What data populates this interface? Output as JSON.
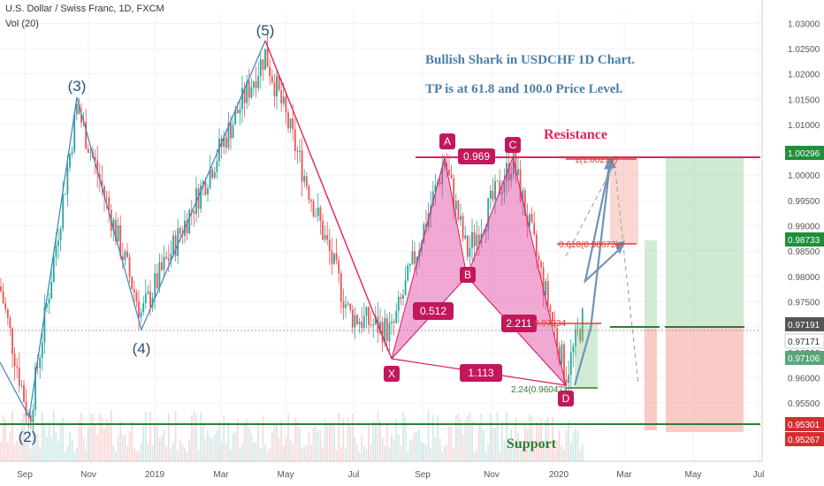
{
  "header": {
    "symbol": "U.S. Dollar / Swiss Franc, 1D, FXCM",
    "volume_label": "Vol (20)"
  },
  "annotations": {
    "line1": "Bullish Shark in USDCHF 1D Chart.",
    "line2": "TP is at 61.8 and 100.0 Price Level.",
    "resistance": "Resistance",
    "support": "Support"
  },
  "colors": {
    "up": "#26a69a",
    "down": "#ef5350",
    "pattern_fill": "#e040a0",
    "wave_line": "#3f7fbf",
    "trend_line": "#e0245a",
    "resistance": "#e0245a",
    "support": "#2e7d32",
    "label_box": "#c2185b"
  },
  "chart_data": {
    "type": "candlestick",
    "title": "U.S. Dollar / Swiss Franc, 1D, FXCM",
    "x_axis": {
      "ticks": [
        "Sep",
        "Nov",
        "2019",
        "Mar",
        "May",
        "Jul",
        "Sep",
        "Nov",
        "2020",
        "Mar",
        "May",
        "Jul"
      ]
    },
    "y_axis": {
      "range": [
        0.9435,
        1.0325
      ],
      "ticks": [
        "1.03000",
        "1.02500",
        "1.02000",
        "1.01500",
        "1.01000",
        "1.00500",
        "1.00000",
        "0.99500",
        "0.99000",
        "0.98500",
        "0.98000",
        "0.97500",
        "0.97000",
        "0.96500",
        "0.96000",
        "0.95500"
      ]
    },
    "price_badges": [
      {
        "value": "1.00296",
        "color": "#1e8f3a"
      },
      {
        "value": "0.98733",
        "color": "#1e8f3a"
      },
      {
        "value": "0.97191",
        "color": "#555555"
      },
      {
        "value": "0.97171",
        "color": "#ffffff"
      },
      {
        "value": "0.97106",
        "color": "#5aa57a"
      },
      {
        "value": "0.95301",
        "color": "#d32f2f"
      },
      {
        "value": "0.95267",
        "color": "#d32f2f"
      }
    ],
    "elliott_waves": [
      {
        "label": "(2)",
        "price": 0.9513
      },
      {
        "label": "(3)",
        "price": 1.0135
      },
      {
        "label": "(4)",
        "price": 0.9725
      },
      {
        "label": "(5)",
        "price": 1.024
      }
    ],
    "shark_pattern": {
      "points": [
        {
          "label": "X",
          "price": 0.9673
        },
        {
          "label": "A",
          "price": 1.003
        },
        {
          "label": "B",
          "price": 0.9845
        },
        {
          "label": "C",
          "price": 1.003
        },
        {
          "label": "D",
          "price": 0.9605
        }
      ],
      "ratios": [
        "0.512",
        "0.969",
        "2.211",
        "1.113"
      ],
      "d_label": "2.24(0.96047)",
      "d_retrace_label": "0.97234"
    },
    "targets": [
      {
        "label": "0.618(0.98672)",
        "price": 0.98672
      },
      {
        "label": "1(1.00219)",
        "price": 1.00219
      }
    ],
    "levels": {
      "resistance": 1.003,
      "support": 0.9545
    }
  }
}
